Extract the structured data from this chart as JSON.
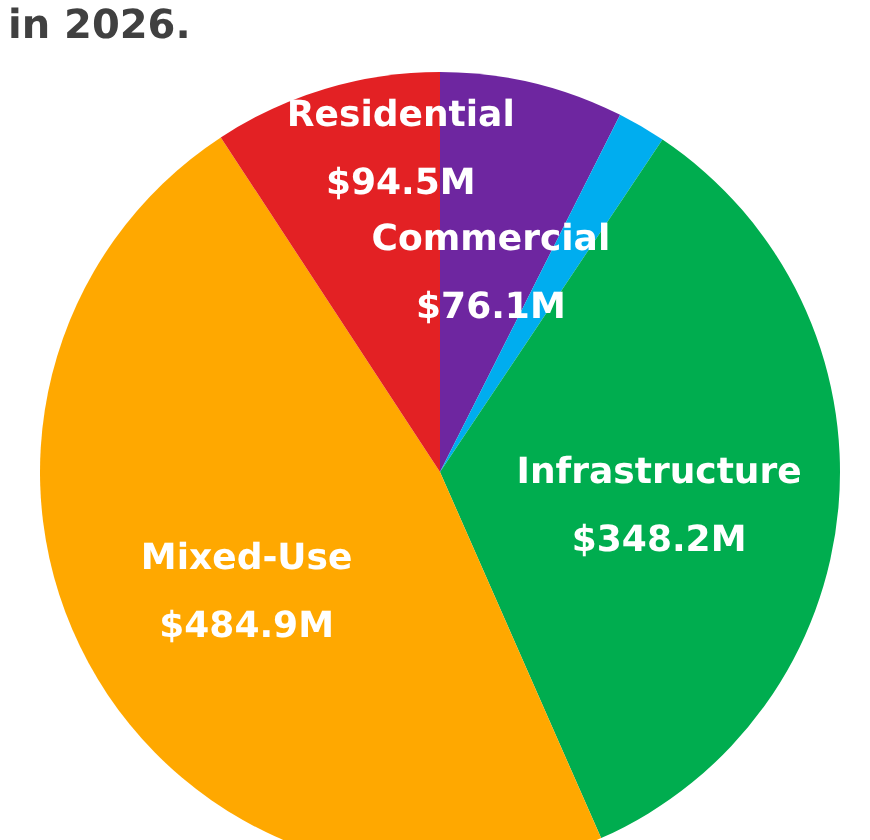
{
  "chart_data": {
    "type": "pie",
    "title": "in 2026.",
    "categories": [
      "Commercial",
      null,
      "Infrastructure",
      "Mixed-Use",
      "Residential"
    ],
    "values": [
      76.1,
      20,
      348.2,
      484.9,
      94.5
    ],
    "value_labels": [
      "$76.1M",
      null,
      "$348.2M",
      "$484.9M",
      "$94.5M"
    ],
    "colors": [
      "#6e26a0",
      "#00adef",
      "#00ad4f",
      "#ffa800",
      "#e32124"
    ],
    "legend": false
  }
}
